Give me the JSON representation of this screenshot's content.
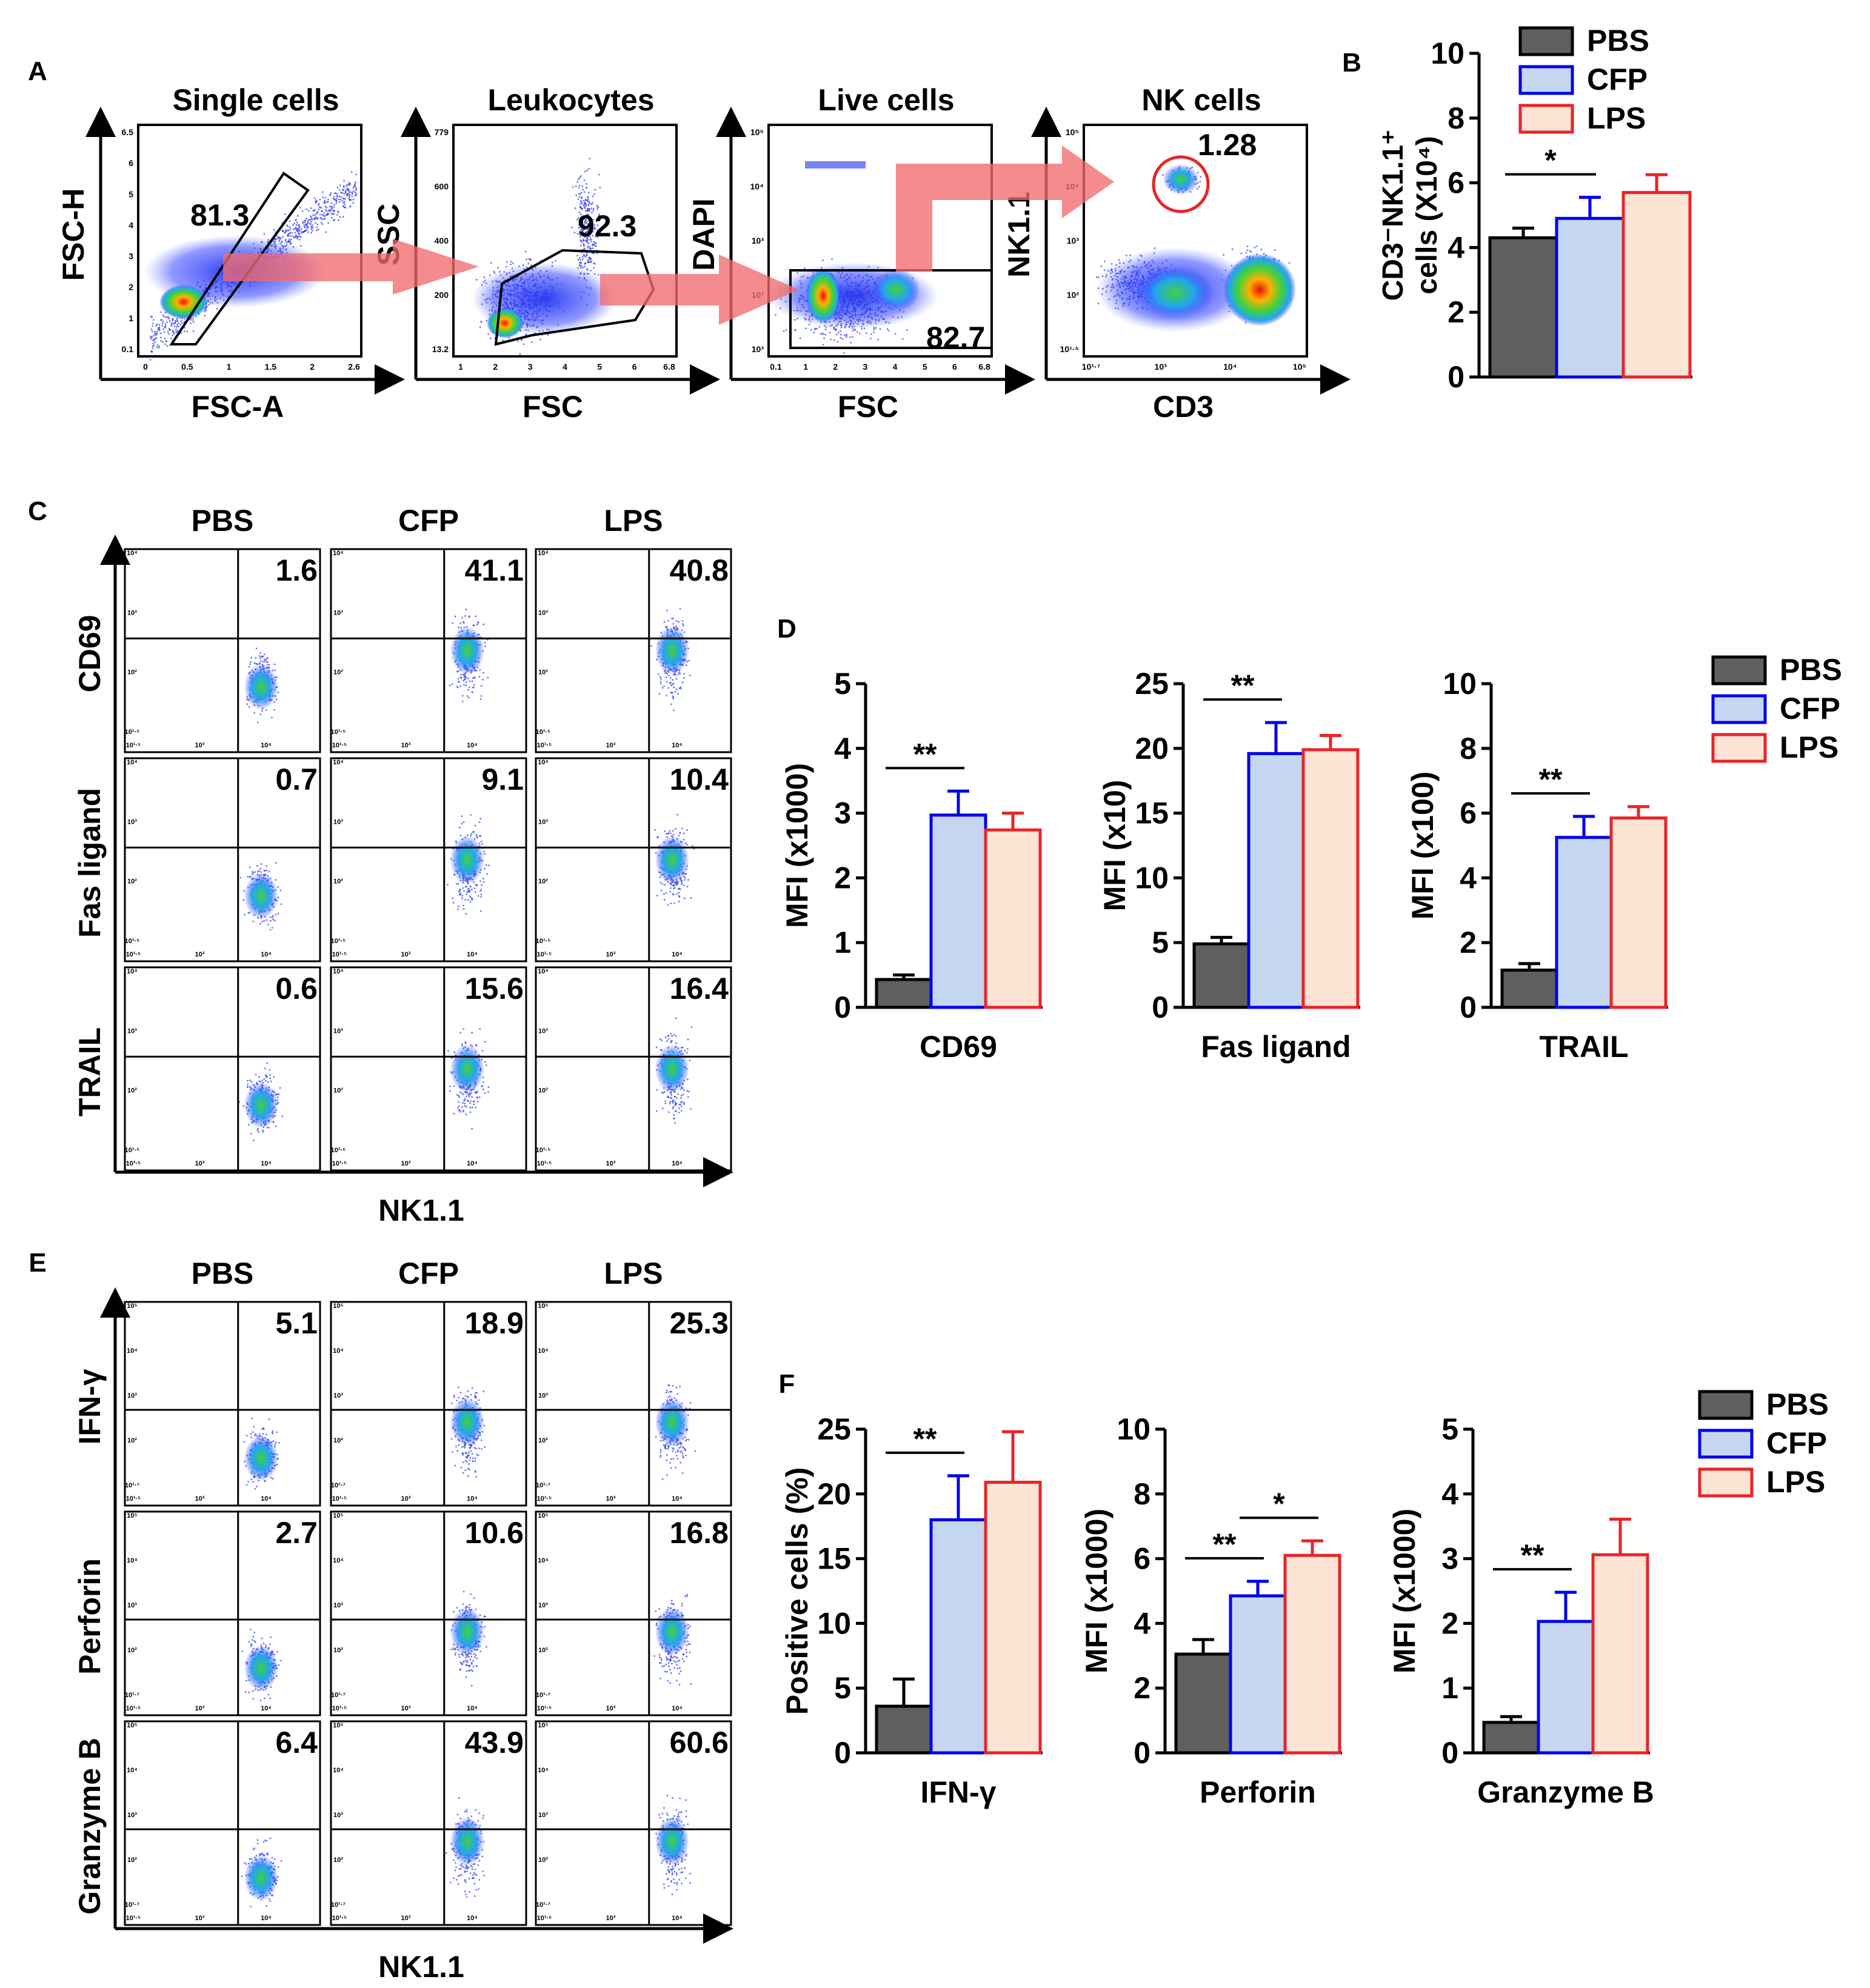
{
  "colors": {
    "PBS": "#5f5f5f",
    "CFP_fill": "#c5d7f0",
    "CFP_edge": "#0000ee",
    "LPS_fill": "#fde4d5",
    "LPS_edge": "#e8242a",
    "arrow": "#f06a70",
    "gate_circle": "#e8242a"
  },
  "panels": {
    "A": {
      "letter": "A",
      "plots": [
        {
          "title": "Single cells",
          "xlabel": "FSC-A",
          "ylabel": "FSC-H",
          "gate_value": "81.3",
          "xticks": [
            "0",
            "0.5",
            "1",
            "1.5",
            "2",
            "2.6"
          ],
          "yticks": [
            "0.1",
            "1",
            "2",
            "3",
            "4",
            "5",
            "6",
            "6.5"
          ]
        },
        {
          "title": "Leukocytes",
          "xlabel": "FSC",
          "ylabel": "SSC",
          "gate_value": "92.3",
          "xticks": [
            "1",
            "2",
            "3",
            "4",
            "5",
            "6",
            "6.8"
          ],
          "yticks": [
            "13.2",
            "200",
            "400",
            "600",
            "779"
          ]
        },
        {
          "title": "Live cells",
          "xlabel": "FSC",
          "ylabel": "DAPI",
          "gate_value": "82.7",
          "xticks": [
            "0.1",
            "1",
            "2",
            "3",
            "4",
            "5",
            "6",
            "6.8"
          ],
          "yticks": [
            "10³",
            "10²",
            "10³",
            "10⁴",
            "10⁵"
          ]
        },
        {
          "title": "NK cells",
          "xlabel": "CD3",
          "ylabel": "NK1.1",
          "gate_value": "1.28",
          "xticks": [
            "10¹·⁷",
            "10³",
            "10⁴",
            "10⁵"
          ],
          "yticks": [
            "10¹·⁵",
            "10²",
            "10³",
            "10⁴",
            "10⁵"
          ]
        }
      ]
    },
    "B": {
      "letter": "B",
      "legend": [
        "PBS",
        "CFP",
        "LPS"
      ]
    },
    "C": {
      "letter": "C",
      "col_headers": [
        "PBS",
        "CFP",
        "LPS"
      ],
      "rows": [
        {
          "label": "CD69",
          "values": [
            "1.6",
            "41.1",
            "40.8"
          ]
        },
        {
          "label": "Fas ligand",
          "values": [
            "0.7",
            "9.1",
            "10.4"
          ]
        },
        {
          "label": "TRAIL",
          "values": [
            "0.6",
            "15.6",
            "16.4"
          ]
        }
      ],
      "xlabel": "NK1.1",
      "mini_xticks": [
        "10¹·⁵",
        "10³",
        "10⁴"
      ],
      "mini_yticks": [
        "10¹·⁵",
        "10²",
        "10³",
        "10⁴"
      ]
    },
    "D": {
      "letter": "D",
      "legend": [
        "PBS",
        "CFP",
        "LPS"
      ]
    },
    "E": {
      "letter": "E",
      "col_headers": [
        "PBS",
        "CFP",
        "LPS"
      ],
      "rows": [
        {
          "label": "IFN-γ",
          "values": [
            "5.1",
            "18.9",
            "25.3"
          ]
        },
        {
          "label": "Perforin",
          "values": [
            "2.7",
            "10.6",
            "16.8"
          ]
        },
        {
          "label": "Granzyme B",
          "values": [
            "6.4",
            "43.9",
            "60.6"
          ]
        }
      ],
      "xlabel": "NK1.1",
      "mini_xticks": [
        "10¹·⁵",
        "10³",
        "10⁴"
      ],
      "mini_yticks": [
        "10¹·⁷",
        "10²",
        "10³",
        "10⁴",
        "10⁵"
      ]
    },
    "F": {
      "letter": "F",
      "legend": [
        "PBS",
        "CFP",
        "LPS"
      ]
    }
  },
  "chart_data": [
    {
      "id": "B",
      "type": "bar",
      "categories": [
        "PBS",
        "CFP",
        "LPS"
      ],
      "values": [
        4.3,
        4.9,
        5.7
      ],
      "errors": [
        0.3,
        0.65,
        0.55
      ],
      "ylabel": "CD3⁻NK1.1⁺ cells (X10⁴)",
      "ylim": [
        0,
        10
      ],
      "yticks": [
        "0",
        "2",
        "4",
        "6",
        "8",
        "10"
      ],
      "xlabel": "",
      "significance": [
        {
          "from": 0,
          "to": 1,
          "label": "*"
        }
      ]
    },
    {
      "id": "D1",
      "type": "bar",
      "categories": [
        "PBS",
        "CFP",
        "LPS"
      ],
      "values": [
        0.43,
        2.97,
        2.74
      ],
      "errors": [
        0.07,
        0.37,
        0.26
      ],
      "ylabel": "MFI (x1000)",
      "xlabel": "CD69",
      "ylim": [
        0,
        5
      ],
      "yticks": [
        "0",
        "1",
        "2",
        "3",
        "4",
        "5"
      ],
      "significance": [
        {
          "from": 0,
          "to": 1,
          "label": "**"
        }
      ]
    },
    {
      "id": "D2",
      "type": "bar",
      "categories": [
        "PBS",
        "CFP",
        "LPS"
      ],
      "values": [
        4.9,
        19.6,
        19.9
      ],
      "errors": [
        0.5,
        2.4,
        1.1
      ],
      "ylabel": "MFI (x10)",
      "xlabel": "Fas ligand",
      "ylim": [
        0,
        25
      ],
      "yticks": [
        "0",
        "5",
        "10",
        "15",
        "20",
        "25"
      ],
      "significance": [
        {
          "from": 0,
          "to": 1,
          "label": "**"
        }
      ]
    },
    {
      "id": "D3",
      "type": "bar",
      "categories": [
        "PBS",
        "CFP",
        "LPS"
      ],
      "values": [
        1.15,
        5.25,
        5.85
      ],
      "errors": [
        0.2,
        0.65,
        0.35
      ],
      "ylabel": "MFI (x100)",
      "xlabel": "TRAIL",
      "ylim": [
        0,
        10
      ],
      "yticks": [
        "0",
        "2",
        "4",
        "6",
        "8",
        "10"
      ],
      "significance": [
        {
          "from": 0,
          "to": 1,
          "label": "**"
        }
      ]
    },
    {
      "id": "F1",
      "type": "bar",
      "categories": [
        "PBS",
        "CFP",
        "LPS"
      ],
      "values": [
        3.6,
        18.0,
        20.9
      ],
      "errors": [
        2.1,
        3.4,
        3.9
      ],
      "ylabel": "Positive cells (%)",
      "xlabel": "IFN-γ",
      "ylim": [
        0,
        25
      ],
      "yticks": [
        "0",
        "5",
        "10",
        "15",
        "20",
        "25"
      ],
      "significance": [
        {
          "from": 0,
          "to": 1,
          "label": "**"
        }
      ]
    },
    {
      "id": "F2",
      "type": "bar",
      "categories": [
        "PBS",
        "CFP",
        "LPS"
      ],
      "values": [
        3.05,
        4.85,
        6.1
      ],
      "errors": [
        0.45,
        0.45,
        0.45
      ],
      "ylabel": "MFI (x1000)",
      "xlabel": "Perforin",
      "ylim": [
        0,
        10
      ],
      "yticks": [
        "0",
        "2",
        "4",
        "6",
        "8",
        "10"
      ],
      "significance": [
        {
          "from": 0,
          "to": 1,
          "label": "**"
        },
        {
          "from": 1,
          "to": 2,
          "label": "*"
        }
      ]
    },
    {
      "id": "F3",
      "type": "bar",
      "categories": [
        "PBS",
        "CFP",
        "LPS"
      ],
      "values": [
        0.47,
        2.03,
        3.06
      ],
      "errors": [
        0.09,
        0.45,
        0.55
      ],
      "ylabel": "MFI (x1000)",
      "xlabel": "Granzyme B",
      "ylim": [
        0,
        5
      ],
      "yticks": [
        "0",
        "1",
        "2",
        "3",
        "4",
        "5"
      ],
      "significance": [
        {
          "from": 0,
          "to": 1,
          "label": "**"
        }
      ]
    }
  ]
}
